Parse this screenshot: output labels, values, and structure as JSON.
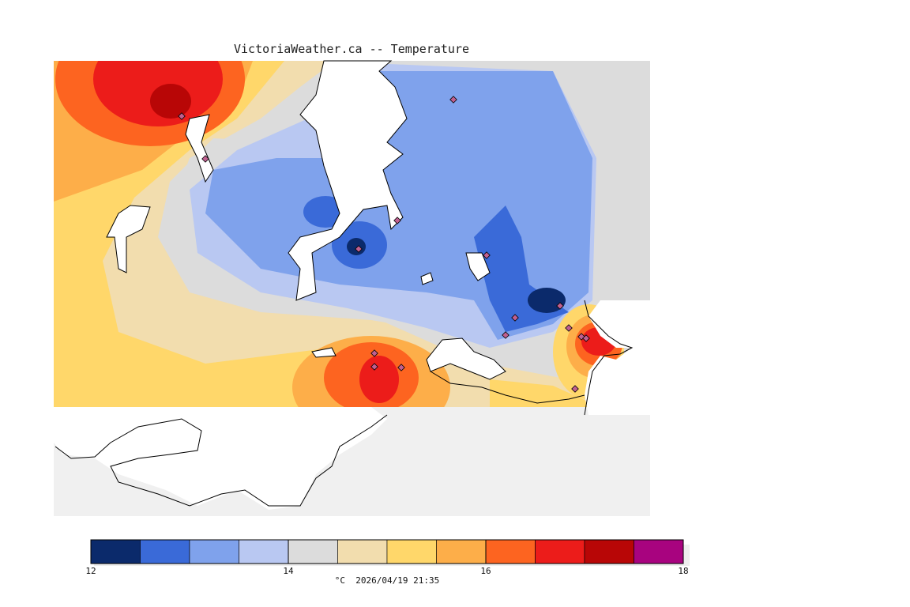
{
  "title": "VictoriaWeather.ca -- Temperature",
  "legend": {
    "unit": "°C",
    "timestamp": "2026/04/19 21:35",
    "min": 12,
    "max": 18,
    "ticks": [
      12,
      14,
      16,
      18
    ],
    "colors": [
      "#0b2a6b",
      "#3a6ad8",
      "#7fa2ec",
      "#b9c8f2",
      "#dcdcdc",
      "#f2ddae",
      "#ffd76a",
      "#fdae49",
      "#fd6420",
      "#ec1c1a",
      "#b80606",
      "#a8037f"
    ]
  },
  "colors": {
    "land_background": "#f0f0f0",
    "water": "#ffffff",
    "coastline": "#000000",
    "station_marker": "#c06090"
  }
}
